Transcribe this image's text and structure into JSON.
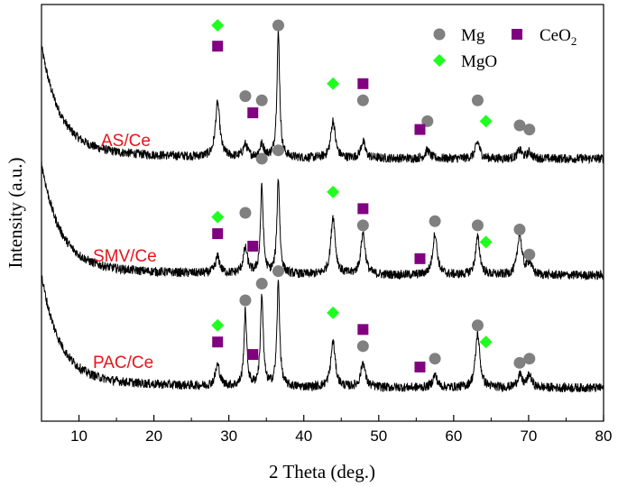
{
  "chart_data": {
    "type": "line",
    "title": "",
    "xlabel": "2 Theta (deg.)",
    "ylabel": "Intensity (a.u.)",
    "xlim": [
      5,
      80
    ],
    "ylim": [
      0,
      100
    ],
    "x_ticks": [
      10,
      20,
      30,
      40,
      50,
      60,
      70,
      80
    ],
    "y_ticks_shown": false,
    "legend": [
      {
        "name": "Mg",
        "marker": "circle",
        "color": "#808080"
      },
      {
        "name": "CeO",
        "subscript": "2",
        "marker": "square",
        "color": "#800080"
      },
      {
        "name": "MgO",
        "marker": "diamond",
        "color": "#1eff1e"
      }
    ],
    "series": [
      {
        "name": "AS/Ce",
        "baseline": 63,
        "peaks": [
          {
            "x": 28.5,
            "h": 13
          },
          {
            "x": 32.2,
            "h": 3
          },
          {
            "x": 34.4,
            "h": 3
          },
          {
            "x": 36.6,
            "h": 30
          },
          {
            "x": 43.9,
            "h": 9
          },
          {
            "x": 47.9,
            "h": 4
          },
          {
            "x": 56.5,
            "h": 2
          },
          {
            "x": 63.2,
            "h": 4
          },
          {
            "x": 68.8,
            "h": 2
          },
          {
            "x": 70.1,
            "h": 1.5
          }
        ],
        "markers": {
          "Mg": [
            [
              32.2,
              78
            ],
            [
              34.4,
              77
            ],
            [
              36.6,
              95
            ],
            [
              47.9,
              77
            ],
            [
              56.5,
              72
            ],
            [
              63.2,
              77
            ],
            [
              68.8,
              71
            ],
            [
              70.1,
              70
            ]
          ],
          "CeO2": [
            [
              28.5,
              90
            ],
            [
              33.2,
              74
            ],
            [
              47.9,
              81
            ],
            [
              55.5,
              70
            ]
          ],
          "MgO": [
            [
              28.5,
              95
            ],
            [
              43.9,
              81
            ],
            [
              64.3,
              72
            ]
          ]
        }
      },
      {
        "name": "SMV/Ce",
        "baseline": 35,
        "peaks": [
          {
            "x": 28.5,
            "h": 4
          },
          {
            "x": 32.2,
            "h": 6
          },
          {
            "x": 34.4,
            "h": 21
          },
          {
            "x": 36.6,
            "h": 23
          },
          {
            "x": 43.9,
            "h": 14
          },
          {
            "x": 47.9,
            "h": 10
          },
          {
            "x": 57.5,
            "h": 10
          },
          {
            "x": 63.2,
            "h": 9
          },
          {
            "x": 68.8,
            "h": 10
          },
          {
            "x": 70.1,
            "h": 3
          }
        ],
        "markers": {
          "Mg": [
            [
              32.2,
              50
            ],
            [
              34.4,
              63
            ],
            [
              36.6,
              65
            ],
            [
              47.9,
              47
            ],
            [
              57.5,
              48
            ],
            [
              63.2,
              47
            ],
            [
              68.8,
              46
            ],
            [
              70.1,
              40
            ]
          ],
          "CeO2": [
            [
              28.5,
              45
            ],
            [
              33.2,
              42
            ],
            [
              47.9,
              51
            ],
            [
              55.5,
              39
            ]
          ],
          "MgO": [
            [
              28.5,
              49
            ],
            [
              43.9,
              55
            ],
            [
              64.3,
              43
            ]
          ]
        }
      },
      {
        "name": "PAC/Ce",
        "baseline": 8,
        "peaks": [
          {
            "x": 28.5,
            "h": 5
          },
          {
            "x": 32.2,
            "h": 18
          },
          {
            "x": 34.4,
            "h": 22
          },
          {
            "x": 36.6,
            "h": 25
          },
          {
            "x": 43.9,
            "h": 11
          },
          {
            "x": 47.9,
            "h": 6
          },
          {
            "x": 57.5,
            "h": 3
          },
          {
            "x": 63.2,
            "h": 13
          },
          {
            "x": 68.8,
            "h": 3
          },
          {
            "x": 70.1,
            "h": 3
          }
        ],
        "markers": {
          "Mg": [
            [
              32.2,
              29
            ],
            [
              34.4,
              33
            ],
            [
              36.6,
              36
            ],
            [
              47.9,
              18
            ],
            [
              57.5,
              15
            ],
            [
              63.2,
              23
            ],
            [
              68.8,
              14
            ],
            [
              70.1,
              15
            ]
          ],
          "CeO2": [
            [
              28.5,
              19
            ],
            [
              33.2,
              16
            ],
            [
              47.9,
              22
            ],
            [
              55.5,
              13
            ]
          ],
          "MgO": [
            [
              28.5,
              23
            ],
            [
              43.9,
              26
            ],
            [
              64.3,
              19
            ]
          ]
        }
      }
    ]
  }
}
